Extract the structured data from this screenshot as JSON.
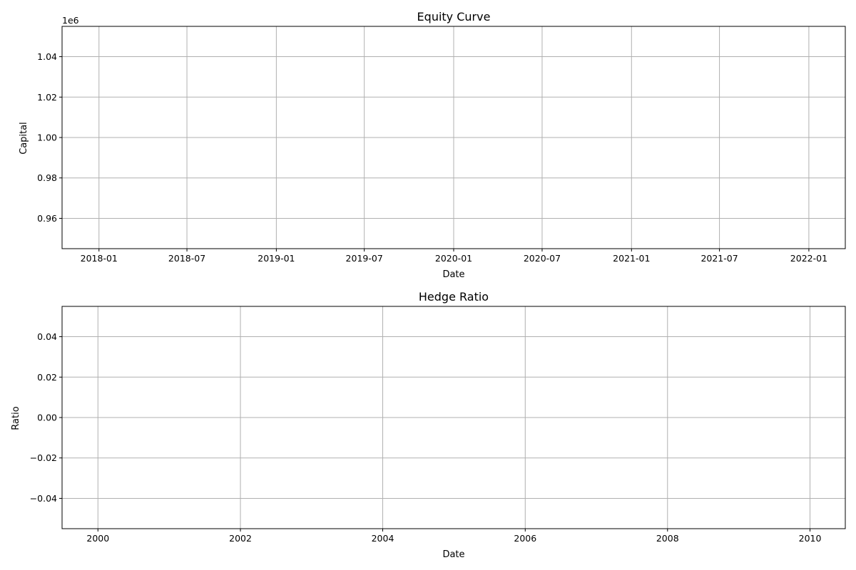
{
  "chart_data": [
    {
      "type": "line",
      "title": "Equity Curve",
      "xlabel": "Date",
      "ylabel": "Capital",
      "y_offset_text": "1e6",
      "x_axis": "date",
      "xlim": [
        "2017-10-17",
        "2022-03-17"
      ],
      "ylim": [
        0.945,
        1.055
      ],
      "x_ticks": [
        {
          "value": "2018-01-01",
          "label": "2018-01"
        },
        {
          "value": "2018-07-01",
          "label": "2018-07"
        },
        {
          "value": "2019-01-01",
          "label": "2019-01"
        },
        {
          "value": "2019-07-01",
          "label": "2019-07"
        },
        {
          "value": "2020-01-01",
          "label": "2020-01"
        },
        {
          "value": "2020-07-01",
          "label": "2020-07"
        },
        {
          "value": "2021-01-01",
          "label": "2021-01"
        },
        {
          "value": "2021-07-01",
          "label": "2021-07"
        },
        {
          "value": "2022-01-01",
          "label": "2022-01"
        }
      ],
      "y_ticks": [
        {
          "value": 0.96,
          "label": "0.96"
        },
        {
          "value": 0.98,
          "label": "0.98"
        },
        {
          "value": 1.0,
          "label": "1.00"
        },
        {
          "value": 1.02,
          "label": "1.02"
        },
        {
          "value": 1.04,
          "label": "1.04"
        }
      ],
      "grid": true,
      "series": []
    },
    {
      "type": "line",
      "title": "Hedge Ratio",
      "xlabel": "Date",
      "ylabel": "Ratio",
      "x_axis": "date",
      "xlim": [
        "1999-07-01",
        "2010-07-01"
      ],
      "ylim": [
        -0.055,
        0.055
      ],
      "x_ticks": [
        {
          "value": "2000-01-01",
          "label": "2000"
        },
        {
          "value": "2002-01-01",
          "label": "2002"
        },
        {
          "value": "2004-01-01",
          "label": "2004"
        },
        {
          "value": "2006-01-01",
          "label": "2006"
        },
        {
          "value": "2008-01-01",
          "label": "2008"
        },
        {
          "value": "2010-01-01",
          "label": "2010"
        }
      ],
      "y_ticks": [
        {
          "value": -0.04,
          "label": "−0.04"
        },
        {
          "value": -0.02,
          "label": "−0.02"
        },
        {
          "value": 0.0,
          "label": "0.00"
        },
        {
          "value": 0.02,
          "label": "0.02"
        },
        {
          "value": 0.04,
          "label": "0.04"
        }
      ],
      "grid": true,
      "series": []
    }
  ]
}
